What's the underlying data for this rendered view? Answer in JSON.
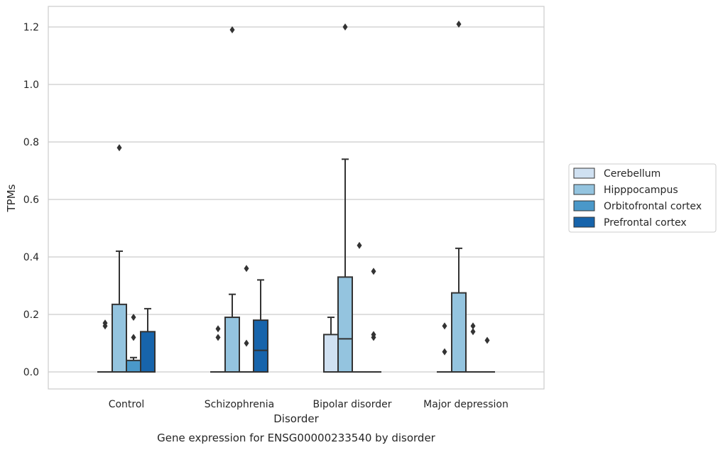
{
  "chart_data": {
    "type": "box",
    "caption": "Gene expression for ENSG00000233540 by disorder",
    "xlabel": "Disorder",
    "ylabel": "TPMs",
    "ylim": [
      -0.06,
      1.27
    ],
    "yticks": [
      0.0,
      0.2,
      0.4,
      0.6,
      0.8,
      1.0,
      1.2
    ],
    "ytick_labels": [
      "0.0",
      "0.2",
      "0.4",
      "0.6",
      "0.8",
      "1.0",
      "1.2"
    ],
    "grid": "horizontal",
    "legend_position": "right",
    "categories": [
      "Control",
      "Schizophrenia",
      "Bipolar disorder",
      "Major depression"
    ],
    "series": [
      {
        "name": "Cerebellum",
        "color": "#d0e1f2",
        "boxes": [
          {
            "q1": 0,
            "median": 0,
            "q3": 0,
            "whislo": 0,
            "whishi": 0,
            "fliers": [
              0.16,
              0.17
            ]
          },
          {
            "q1": 0,
            "median": 0,
            "q3": 0,
            "whislo": 0,
            "whishi": 0,
            "fliers": [
              0.12,
              0.15
            ]
          },
          {
            "q1": 0,
            "median": 0,
            "q3": 0.13,
            "whislo": 0,
            "whishi": 0.19,
            "fliers": []
          },
          {
            "q1": 0,
            "median": 0,
            "q3": 0,
            "whislo": 0,
            "whishi": 0,
            "fliers": [
              0.07,
              0.16
            ]
          }
        ]
      },
      {
        "name": "Hipppocampus",
        "color": "#94c4df",
        "boxes": [
          {
            "q1": 0,
            "median": 0,
            "q3": 0.235,
            "whislo": 0,
            "whishi": 0.42,
            "fliers": [
              0.78
            ]
          },
          {
            "q1": 0,
            "median": 0,
            "q3": 0.19,
            "whislo": 0,
            "whishi": 0.27,
            "fliers": [
              1.19
            ]
          },
          {
            "q1": 0,
            "median": 0.115,
            "q3": 0.33,
            "whislo": 0,
            "whishi": 0.74,
            "fliers": [
              1.2
            ]
          },
          {
            "q1": 0,
            "median": 0,
            "q3": 0.275,
            "whislo": 0,
            "whishi": 0.43,
            "fliers": [
              1.21
            ]
          }
        ]
      },
      {
        "name": "Orbitofrontal cortex",
        "color": "#4a98c9",
        "boxes": [
          {
            "q1": 0,
            "median": 0,
            "q3": 0.04,
            "whislo": 0,
            "whishi": 0.05,
            "fliers": [
              0.12,
              0.19
            ]
          },
          {
            "q1": 0,
            "median": 0,
            "q3": 0,
            "whislo": 0,
            "whishi": 0,
            "fliers": [
              0.1,
              0.36
            ]
          },
          {
            "q1": 0,
            "median": 0,
            "q3": 0,
            "whislo": 0,
            "whishi": 0,
            "fliers": [
              0.44
            ]
          },
          {
            "q1": 0,
            "median": 0,
            "q3": 0,
            "whislo": 0,
            "whishi": 0,
            "fliers": [
              0.14,
              0.16
            ]
          }
        ]
      },
      {
        "name": "Prefrontal cortex",
        "color": "#1764ab",
        "boxes": [
          {
            "q1": 0,
            "median": 0,
            "q3": 0.14,
            "whislo": 0,
            "whishi": 0.22,
            "fliers": []
          },
          {
            "q1": 0,
            "median": 0.075,
            "q3": 0.18,
            "whislo": 0,
            "whishi": 0.32,
            "fliers": []
          },
          {
            "q1": 0,
            "median": 0,
            "q3": 0,
            "whislo": 0,
            "whishi": 0,
            "fliers": [
              0.12,
              0.13,
              0.35
            ]
          },
          {
            "q1": 0,
            "median": 0,
            "q3": 0,
            "whislo": 0,
            "whishi": 0,
            "fliers": [
              0.11
            ]
          }
        ]
      }
    ]
  }
}
